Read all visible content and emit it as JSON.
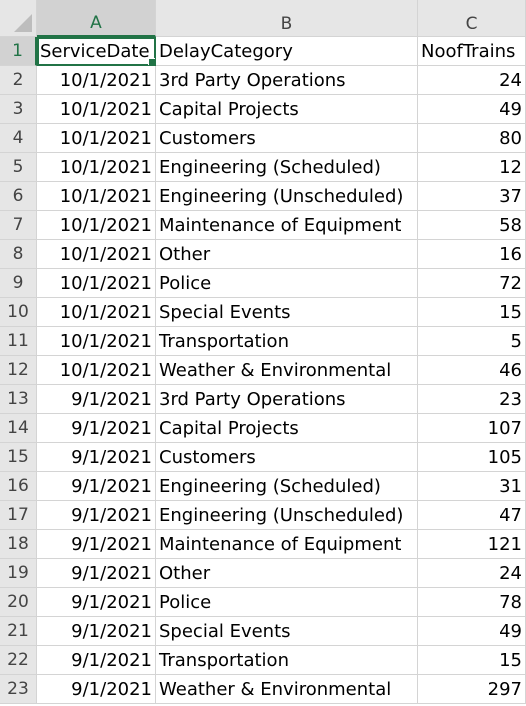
{
  "columns": [
    "A",
    "B",
    "C"
  ],
  "selected_cell": {
    "row": 1,
    "col": "A"
  },
  "colors": {
    "accent": "#217346",
    "header_bg": "#e6e6e6",
    "gridline": "#d4d4d4"
  },
  "rows": [
    {
      "num": "1",
      "cells": [
        "ServiceDate",
        "DelayCategory",
        "NoofTrains"
      ]
    },
    {
      "num": "2",
      "cells": [
        "10/1/2021",
        "3rd Party Operations",
        "24"
      ]
    },
    {
      "num": "3",
      "cells": [
        "10/1/2021",
        "Capital Projects",
        "49"
      ]
    },
    {
      "num": "4",
      "cells": [
        "10/1/2021",
        "Customers",
        "80"
      ]
    },
    {
      "num": "5",
      "cells": [
        "10/1/2021",
        "Engineering (Scheduled)",
        "12"
      ]
    },
    {
      "num": "6",
      "cells": [
        "10/1/2021",
        "Engineering (Unscheduled)",
        "37"
      ]
    },
    {
      "num": "7",
      "cells": [
        "10/1/2021",
        "Maintenance of Equipment",
        "58"
      ]
    },
    {
      "num": "8",
      "cells": [
        "10/1/2021",
        "Other",
        "16"
      ]
    },
    {
      "num": "9",
      "cells": [
        "10/1/2021",
        "Police",
        "72"
      ]
    },
    {
      "num": "10",
      "cells": [
        "10/1/2021",
        "Special Events",
        "15"
      ]
    },
    {
      "num": "11",
      "cells": [
        "10/1/2021",
        "Transportation",
        "5"
      ]
    },
    {
      "num": "12",
      "cells": [
        "10/1/2021",
        "Weather & Environmental",
        "46"
      ]
    },
    {
      "num": "13",
      "cells": [
        "9/1/2021",
        "3rd Party Operations",
        "23"
      ]
    },
    {
      "num": "14",
      "cells": [
        "9/1/2021",
        "Capital Projects",
        "107"
      ]
    },
    {
      "num": "15",
      "cells": [
        "9/1/2021",
        "Customers",
        "105"
      ]
    },
    {
      "num": "16",
      "cells": [
        "9/1/2021",
        "Engineering (Scheduled)",
        "31"
      ]
    },
    {
      "num": "17",
      "cells": [
        "9/1/2021",
        "Engineering (Unscheduled)",
        "47"
      ]
    },
    {
      "num": "18",
      "cells": [
        "9/1/2021",
        "Maintenance of Equipment",
        "121"
      ]
    },
    {
      "num": "19",
      "cells": [
        "9/1/2021",
        "Other",
        "24"
      ]
    },
    {
      "num": "20",
      "cells": [
        "9/1/2021",
        "Police",
        "78"
      ]
    },
    {
      "num": "21",
      "cells": [
        "9/1/2021",
        "Special Events",
        "49"
      ]
    },
    {
      "num": "22",
      "cells": [
        "9/1/2021",
        "Transportation",
        "15"
      ]
    },
    {
      "num": "23",
      "cells": [
        "9/1/2021",
        "Weather & Environmental",
        "297"
      ]
    }
  ]
}
